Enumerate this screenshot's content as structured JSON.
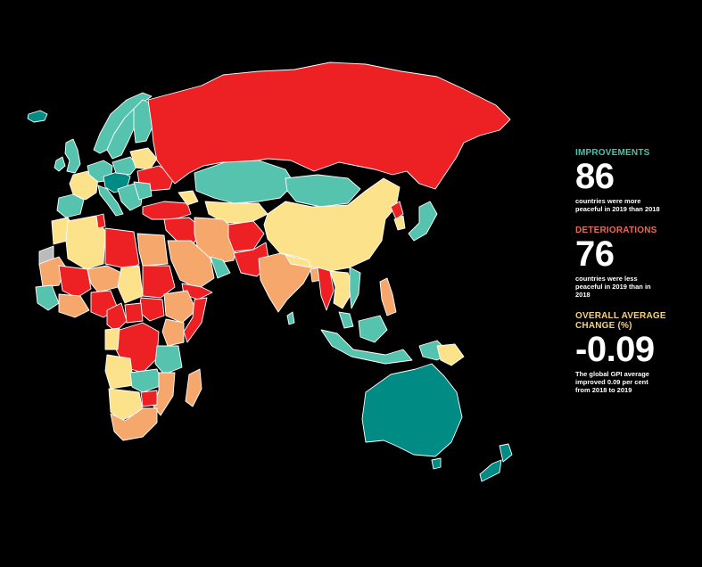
{
  "colors": {
    "background": "#000000",
    "improvement": "#4fc2a8",
    "deterioration": "#e86a55",
    "average": "#f5d180",
    "map_red": "#ed2124",
    "map_orange": "#f6a86c",
    "map_yellow": "#fde28c",
    "map_teal": "#55c3ad",
    "map_dark_teal": "#008b84",
    "map_grey": "#b9bbbd",
    "border": "#ffffff"
  },
  "stats": {
    "improvements": {
      "heading": "IMPROVEMENTS",
      "number": "86",
      "description": "countries were more peaceful in 2019 than 2018"
    },
    "deteriorations": {
      "heading": "DETERIORATIONS",
      "number": "76",
      "description": "countries were less peaceful in 2019 than in 2018"
    },
    "average": {
      "heading": "OVERALL AVERAGE CHANGE (%)",
      "number": "-0.09",
      "description": "The global GPI average improved 0.09 per cent from 2018 to 2019"
    }
  }
}
